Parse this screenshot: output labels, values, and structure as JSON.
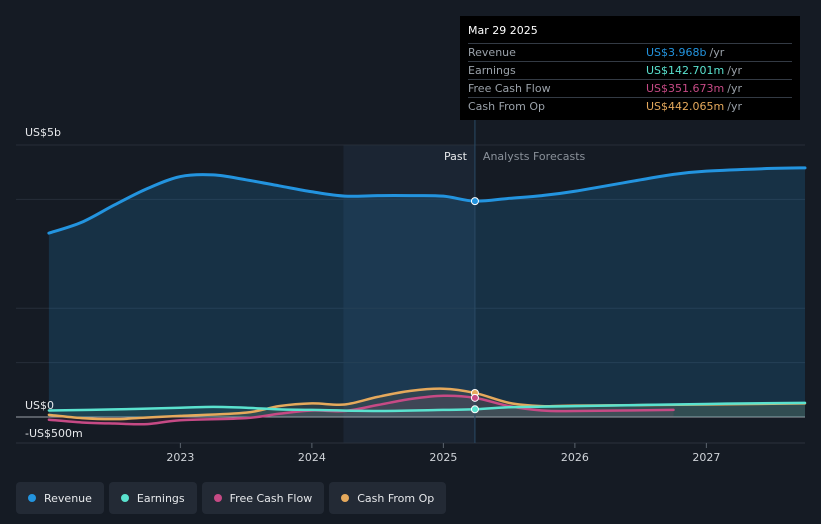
{
  "colors": {
    "background": "#151b24",
    "past_shade": "#1b2533",
    "revenue": "#2394df",
    "earnings": "#5ae2cf",
    "fcf": "#c64a85",
    "cfo": "#e5a95c"
  },
  "tooltip": {
    "date": "Mar 29 2025",
    "rows": [
      {
        "label": "Revenue",
        "value": "US$3.968b",
        "unit": "/yr"
      },
      {
        "label": "Earnings",
        "value": "US$142.701m",
        "unit": "/yr"
      },
      {
        "label": "Free Cash Flow",
        "value": "US$351.673m",
        "unit": "/yr"
      },
      {
        "label": "Cash From Op",
        "value": "US$442.065m",
        "unit": "/yr"
      }
    ]
  },
  "legend": [
    {
      "label": "Revenue"
    },
    {
      "label": "Earnings"
    },
    {
      "label": "Free Cash Flow"
    },
    {
      "label": "Cash From Op"
    }
  ],
  "chart_data": {
    "type": "line",
    "y_axis_labels": [
      "US$5b",
      "US$0",
      "-US$500m"
    ],
    "ylim": [
      -500,
      5000
    ],
    "x_ticks": [
      "2023",
      "2024",
      "2025",
      "2026",
      "2027"
    ],
    "x_tick_values": [
      2023,
      2024,
      2025,
      2026,
      2027
    ],
    "xlim": [
      2021.75,
      2027.75
    ],
    "past_label": "Past",
    "forecast_label": "Analysts Forecasts",
    "divider_x": 2025.24,
    "past_shade_start": 2024.24,
    "grid": true,
    "legend_position": "bottom-left",
    "series": [
      {
        "name": "Revenue",
        "key": "revenue",
        "area": true,
        "x": [
          2022.0,
          2022.25,
          2022.5,
          2022.75,
          2023.0,
          2023.25,
          2023.5,
          2023.75,
          2024.0,
          2024.25,
          2024.5,
          2024.75,
          2025.0,
          2025.24,
          2025.5,
          2025.75,
          2026.0,
          2026.5,
          2026.75,
          2027.0,
          2027.5,
          2027.75
        ],
        "y": [
          3380,
          3580,
          3900,
          4200,
          4420,
          4450,
          4360,
          4250,
          4140,
          4060,
          4070,
          4070,
          4060,
          3968,
          4020,
          4070,
          4150,
          4360,
          4460,
          4520,
          4570,
          4580
        ]
      },
      {
        "name": "Earnings",
        "key": "earnings",
        "x": [
          2022.0,
          2022.5,
          2023.0,
          2023.25,
          2023.5,
          2023.75,
          2024.0,
          2024.5,
          2025.0,
          2025.24,
          2025.5,
          2026.0,
          2027.0,
          2027.75
        ],
        "y": [
          120,
          140,
          170,
          185,
          170,
          140,
          130,
          110,
          130,
          142,
          180,
          200,
          240,
          260
        ]
      },
      {
        "name": "Free Cash Flow",
        "key": "fcf",
        "x": [
          2022.0,
          2022.25,
          2022.5,
          2022.75,
          2023.0,
          2023.5,
          2023.75,
          2024.0,
          2024.25,
          2024.5,
          2024.75,
          2025.0,
          2025.24,
          2025.5,
          2025.75,
          2026.0,
          2026.75
        ],
        "y": [
          -50,
          -100,
          -120,
          -130,
          -60,
          -20,
          60,
          120,
          110,
          220,
          330,
          390,
          352,
          200,
          120,
          110,
          130
        ]
      },
      {
        "name": "Cash From Op",
        "key": "cfo",
        "x": [
          2022.0,
          2022.25,
          2022.5,
          2022.75,
          2023.0,
          2023.5,
          2023.75,
          2024.0,
          2024.25,
          2024.5,
          2024.75,
          2025.0,
          2025.24,
          2025.5,
          2025.75,
          2026.0,
          2027.0,
          2027.75
        ],
        "y": [
          40,
          -20,
          -40,
          -10,
          20,
          80,
          200,
          250,
          230,
          370,
          480,
          520,
          442,
          260,
          200,
          210,
          230,
          250
        ]
      }
    ]
  }
}
